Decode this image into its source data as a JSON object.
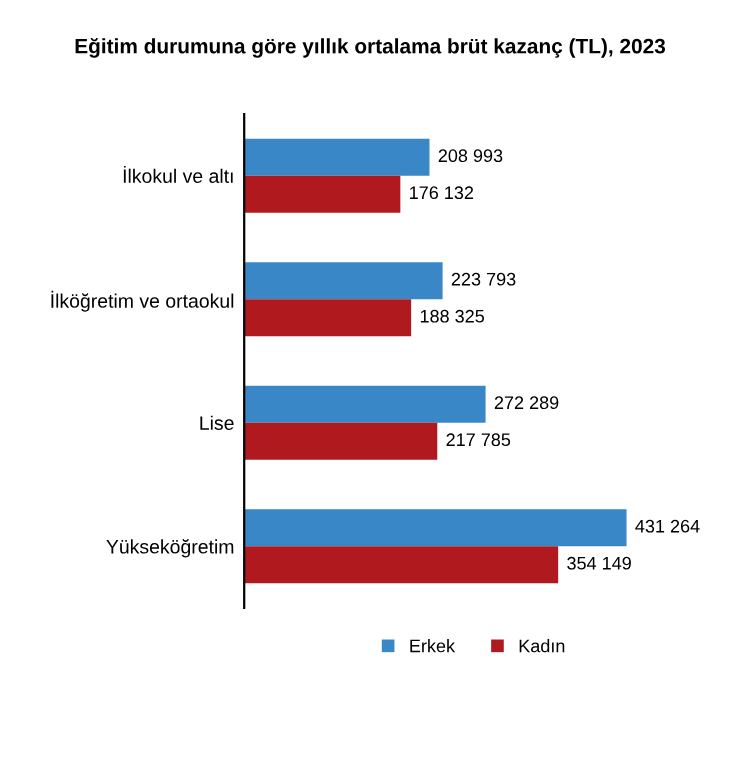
{
  "chart_data": {
    "type": "bar",
    "orientation": "horizontal",
    "title": "Eğitim durumuna göre yıllık ortalama brüt kazanç (TL), 2023",
    "categories": [
      "İlkokul ve altı",
      "İlköğretim ve ortaokul",
      "Lise",
      "Yükseköğretim"
    ],
    "series": [
      {
        "name": "Erkek",
        "color": "#3a87c8",
        "values": [
          208993,
          223793,
          272289,
          431264
        ],
        "value_labels": [
          "208 993",
          "223 793",
          "272 289",
          "431 264"
        ]
      },
      {
        "name": "Kadın",
        "color": "#b01a1f",
        "values": [
          176132,
          188325,
          217785,
          354149
        ],
        "value_labels": [
          "176 132",
          "188 325",
          "217 785",
          "354 149"
        ]
      }
    ],
    "tick_labels": "y",
    "legend": "bottom",
    "grid": false
  }
}
